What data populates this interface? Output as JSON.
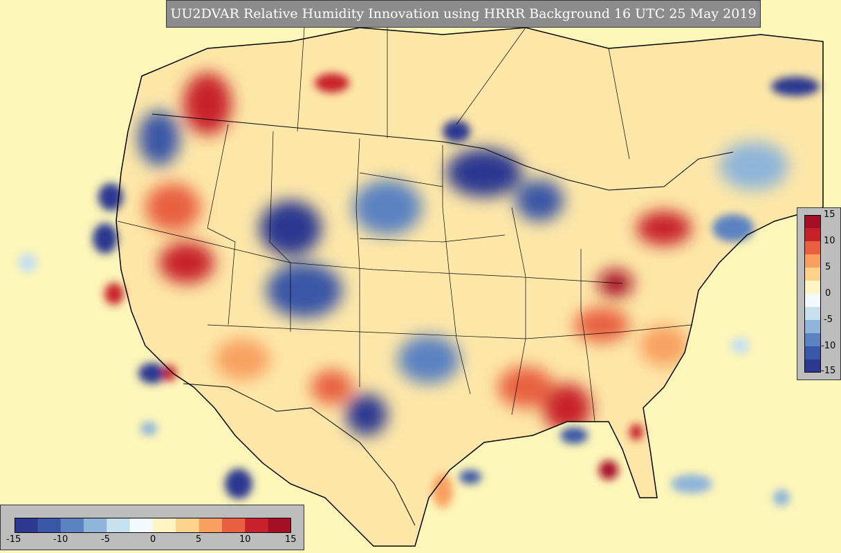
{
  "title": "UU2DVAR Relative Humidity Innovation using HRRR Background 16 UTC 25 May 2019",
  "colorbar": {
    "min": -15,
    "max": 15,
    "ticks": [
      "-15",
      "-10",
      "-5",
      "0",
      "5",
      "10",
      "15"
    ],
    "colors": [
      "#2b3990",
      "#3a56a6",
      "#5b82c1",
      "#8fb5da",
      "#c7e0ef",
      "#f3fafe",
      "#fff3c2",
      "#fdd38c",
      "#f8a060",
      "#e8603f",
      "#c7212c",
      "#a50f26"
    ]
  },
  "map_colors": {
    "background": "#fdf6b9",
    "border_line": "#000000"
  }
}
